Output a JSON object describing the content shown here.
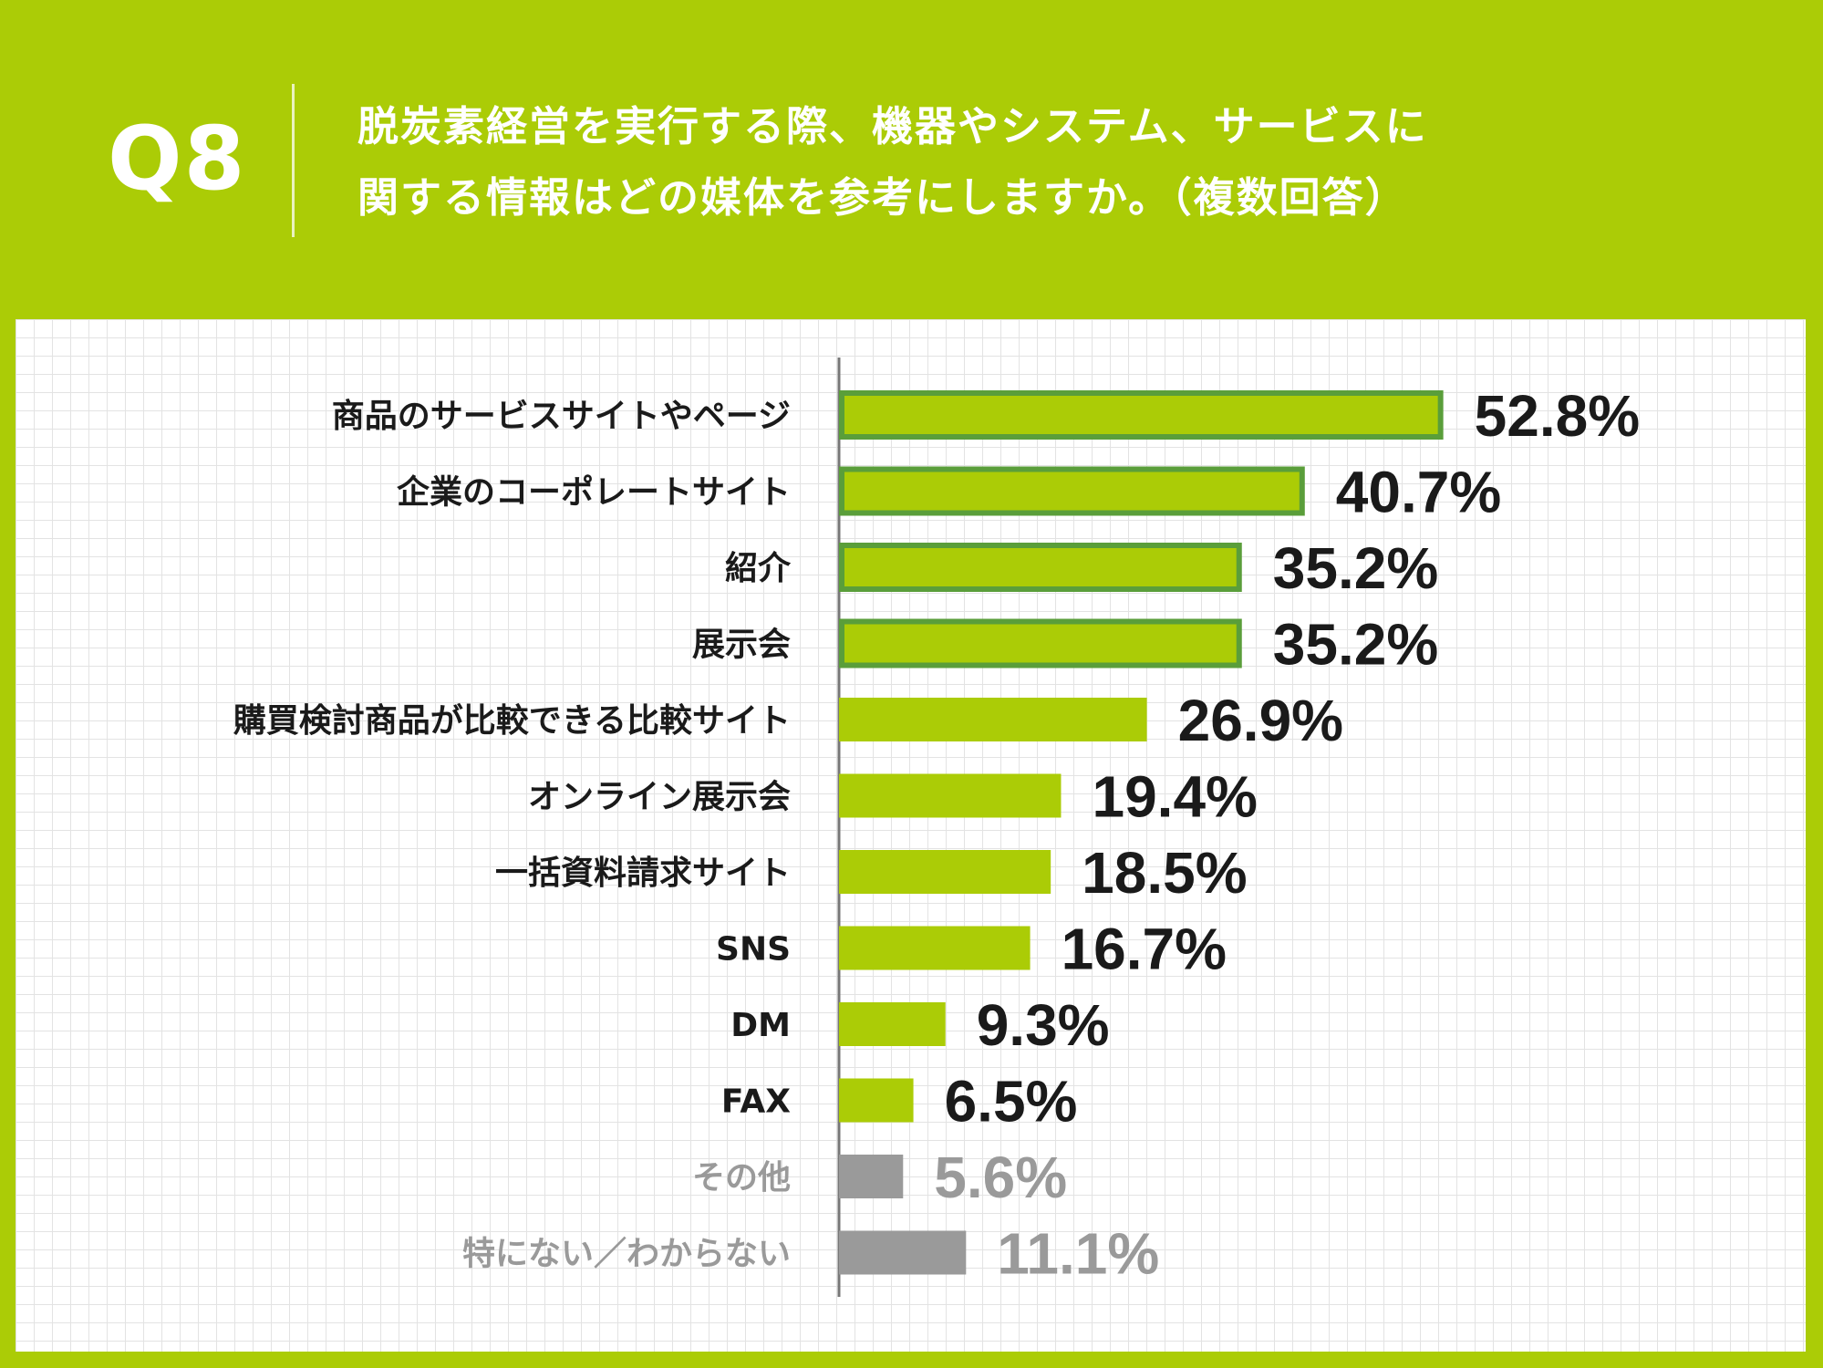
{
  "header": {
    "q_number": "Q8",
    "question_line1": "脱炭素経営を実行する際、機器やシステム、サービスに",
    "question_line2": "関する情報はどの媒体を参考にしますか。（複数回答）"
  },
  "colors": {
    "background": "#abcc06",
    "bar": "#abcc06",
    "bar_highlight_border": "#5a9e3a",
    "bar_gray": "#9a9a9a",
    "text_dark": "#1a1a1a",
    "text_gray": "#9a9a9a"
  },
  "chart_data": {
    "type": "bar",
    "orientation": "horizontal",
    "categories": [
      "商品のサービスサイトやページ",
      "企業のコーポレートサイト",
      "紹介",
      "展示会",
      "購買検討商品が比較できる比較サイト",
      "オンライン展示会",
      "一括資料請求サイト",
      "SNS",
      "DM",
      "FAX",
      "その他",
      "特にない／わからない"
    ],
    "values": [
      52.8,
      40.7,
      35.2,
      35.2,
      26.9,
      19.4,
      18.5,
      16.7,
      9.3,
      6.5,
      5.6,
      11.1
    ],
    "value_labels": [
      "52.8%",
      "40.7%",
      "35.2%",
      "35.2%",
      "26.9%",
      "19.4%",
      "18.5%",
      "16.7%",
      "9.3%",
      "6.5%",
      "5.6%",
      "11.1%"
    ],
    "highlighted": [
      true,
      true,
      true,
      true,
      false,
      false,
      false,
      false,
      false,
      false,
      false,
      false
    ],
    "muted": [
      false,
      false,
      false,
      false,
      false,
      false,
      false,
      false,
      false,
      false,
      true,
      true
    ],
    "unit": "%",
    "xlim": [
      0,
      100
    ],
    "grid": true
  }
}
